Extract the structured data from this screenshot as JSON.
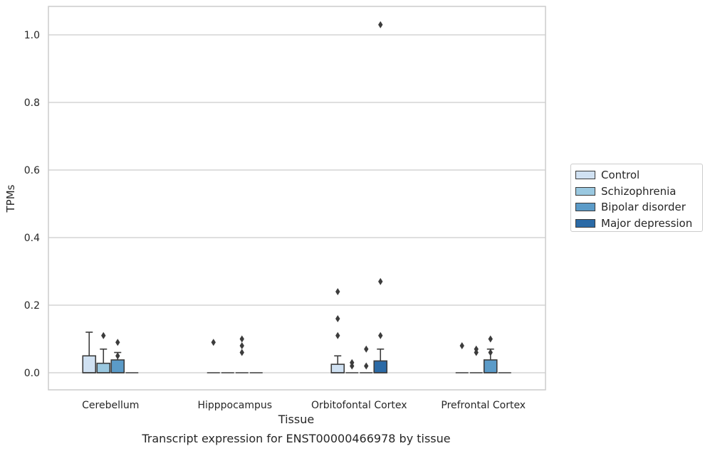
{
  "chart_data": {
    "type": "box",
    "caption": "Transcript expression for ENST00000466978 by tissue",
    "xlabel": "Tissue",
    "ylabel": "TPMs",
    "ylim": [
      -0.05,
      1.08
    ],
    "yticks": [
      0.0,
      0.2,
      0.4,
      0.6,
      0.8,
      1.0
    ],
    "ytick_labels": [
      "0.0",
      "0.2",
      "0.4",
      "0.6",
      "0.8",
      "1.0"
    ],
    "grid": "horizontal",
    "legend_position": "right",
    "categories": [
      "Cerebellum",
      "Hipppocampus",
      "Orbitofontal Cortex",
      "Prefrontal Cortex"
    ],
    "series": [
      {
        "name": "Control",
        "color": "#d0e1f2",
        "boxes": [
          {
            "q1": 0.0,
            "median": 0.0,
            "q3": 0.05,
            "whisker_low": 0.0,
            "whisker_high": 0.12,
            "outliers": []
          },
          {
            "q1": 0.0,
            "median": 0.0,
            "q3": 0.0,
            "whisker_low": 0.0,
            "whisker_high": 0.0,
            "outliers": [
              0.09
            ]
          },
          {
            "q1": 0.0,
            "median": 0.0,
            "q3": 0.025,
            "whisker_low": 0.0,
            "whisker_high": 0.05,
            "outliers": [
              0.11,
              0.16,
              0.24
            ]
          },
          {
            "q1": 0.0,
            "median": 0.0,
            "q3": 0.0,
            "whisker_low": 0.0,
            "whisker_high": 0.0,
            "outliers": [
              0.08
            ]
          }
        ]
      },
      {
        "name": "Schizophrenia",
        "color": "#9ac8e0",
        "boxes": [
          {
            "q1": 0.0,
            "median": 0.0,
            "q3": 0.028,
            "whisker_low": 0.0,
            "whisker_high": 0.07,
            "outliers": [
              0.11
            ]
          },
          {
            "q1": 0.0,
            "median": 0.0,
            "q3": 0.0,
            "whisker_low": 0.0,
            "whisker_high": 0.0,
            "outliers": []
          },
          {
            "q1": 0.0,
            "median": 0.0,
            "q3": 0.0,
            "whisker_low": 0.0,
            "whisker_high": 0.0,
            "outliers": [
              0.02,
              0.03
            ]
          },
          {
            "q1": 0.0,
            "median": 0.0,
            "q3": 0.0,
            "whisker_low": 0.0,
            "whisker_high": 0.0,
            "outliers": [
              0.06,
              0.07
            ]
          }
        ]
      },
      {
        "name": "Bipolar disorder",
        "color": "#5b9bc8",
        "boxes": [
          {
            "q1": 0.0,
            "median": 0.0,
            "q3": 0.038,
            "whisker_low": 0.0,
            "whisker_high": 0.06,
            "outliers": [
              0.05,
              0.09
            ]
          },
          {
            "q1": 0.0,
            "median": 0.0,
            "q3": 0.0,
            "whisker_low": 0.0,
            "whisker_high": 0.0,
            "outliers": [
              0.06,
              0.08,
              0.1
            ]
          },
          {
            "q1": 0.0,
            "median": 0.0,
            "q3": 0.0,
            "whisker_low": 0.0,
            "whisker_high": 0.0,
            "outliers": [
              0.02,
              0.07
            ]
          },
          {
            "q1": 0.0,
            "median": 0.0,
            "q3": 0.038,
            "whisker_low": 0.0,
            "whisker_high": 0.07,
            "outliers": [
              0.06,
              0.1
            ]
          }
        ]
      },
      {
        "name": "Major depression",
        "color": "#2b6aa6",
        "boxes": [
          {
            "q1": 0.0,
            "median": 0.0,
            "q3": 0.0,
            "whisker_low": 0.0,
            "whisker_high": 0.0,
            "outliers": []
          },
          {
            "q1": 0.0,
            "median": 0.0,
            "q3": 0.0,
            "whisker_low": 0.0,
            "whisker_high": 0.0,
            "outliers": []
          },
          {
            "q1": 0.0,
            "median": 0.0,
            "q3": 0.035,
            "whisker_low": 0.0,
            "whisker_high": 0.07,
            "outliers": [
              0.11,
              0.27,
              1.03
            ]
          },
          {
            "q1": 0.0,
            "median": 0.0,
            "q3": 0.0,
            "whisker_low": 0.0,
            "whisker_high": 0.0,
            "outliers": []
          }
        ]
      }
    ]
  }
}
